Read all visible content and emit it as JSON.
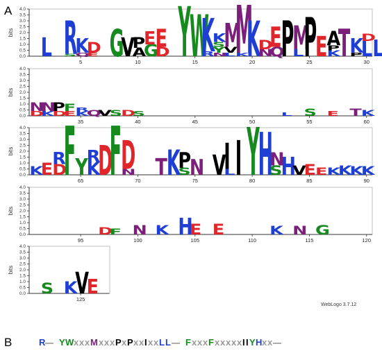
{
  "labels": {
    "panel_a": "A",
    "panel_b": "B",
    "credit": "WebLogo 3.7.12"
  },
  "colors": {
    "K": "#1f3fd4",
    "R": "#1f3fd4",
    "H": "#1f3fd4",
    "D": "#e0262b",
    "E": "#e0262b",
    "P": "#000000",
    "A": "#000000",
    "V": "#000000",
    "L": "#1f3fd4",
    "I": "#000000",
    "M": "#7b1f7b",
    "F": "#168a1e",
    "Y": "#168a1e",
    "W": "#168a1e",
    "N": "#7b1f7b",
    "Q": "#7b1f7b",
    "S": "#168a1e",
    "T": "#7b1f7b",
    "G": "#168a1e",
    "C": "#168a1e",
    "x": "#9a9a9a",
    "dash": "#777777"
  },
  "chart_data": {
    "type": "sequence-logo",
    "ylabel": "bits",
    "ylim": [
      0,
      4.0
    ],
    "yticks": [
      "0.0",
      "0.5",
      "1.0",
      "1.5",
      "2.0",
      "2.5",
      "3.0",
      "3.5",
      "4.0"
    ],
    "rows": [
      {
        "start": 1,
        "end": 30,
        "xticks": [
          "5",
          "10",
          "15",
          "20",
          "25",
          "30"
        ],
        "columns": [
          {
            "pos": 2,
            "stack": [
              [
                "L",
                1.6
              ]
            ]
          },
          {
            "pos": 4,
            "stack": [
              [
                "S",
                0.2
              ],
              [
                "R",
                2.8
              ]
            ]
          },
          {
            "pos": 5,
            "stack": [
              [
                "Q",
                0.3
              ],
              [
                "K",
                1.2
              ]
            ]
          },
          {
            "pos": 6,
            "stack": [
              [
                "E",
                0.3
              ],
              [
                "D",
                0.9
              ]
            ]
          },
          {
            "pos": 8,
            "stack": [
              [
                "G",
                2.3
              ]
            ]
          },
          {
            "pos": 9,
            "stack": [
              [
                "V",
                1.6
              ]
            ]
          },
          {
            "pos": 10,
            "stack": [
              [
                "A",
                0.7
              ],
              [
                "P",
                0.9
              ]
            ]
          },
          {
            "pos": 11,
            "stack": [
              [
                "G",
                1.0
              ],
              [
                "E",
                1.1
              ]
            ]
          },
          {
            "pos": 12,
            "stack": [
              [
                "D",
                0.8
              ],
              [
                "E",
                1.5
              ]
            ]
          },
          {
            "pos": 14,
            "stack": [
              [
                "Y",
                4.2
              ]
            ]
          },
          {
            "pos": 15,
            "stack": [
              [
                "W",
                3.5
              ]
            ]
          },
          {
            "pos": 16,
            "stack": [
              [
                "R",
                0.4
              ],
              [
                "K",
                2.8
              ]
            ]
          },
          {
            "pos": 17,
            "stack": [
              [
                "N",
                0.3
              ],
              [
                "Y",
                0.5
              ],
              [
                "S",
                0.4
              ],
              [
                "K",
                0.7
              ]
            ]
          },
          {
            "pos": 18,
            "stack": [
              [
                "L",
                0.3
              ],
              [
                "V",
                0.5
              ],
              [
                "M",
                2.0
              ]
            ]
          },
          {
            "pos": 19,
            "stack": [
              [
                "K",
                0.3
              ],
              [
                "M",
                4.0
              ]
            ]
          },
          {
            "pos": 20,
            "stack": [
              [
                "K",
                3.0
              ]
            ]
          },
          {
            "pos": 21,
            "stack": [
              [
                "N",
                0.6
              ],
              [
                "D",
                0.8
              ]
            ]
          },
          {
            "pos": 22,
            "stack": [
              [
                "Q",
                0.8
              ],
              [
                "E",
                1.7
              ]
            ]
          },
          {
            "pos": 23,
            "stack": [
              [
                "P",
                3.0
              ]
            ]
          },
          {
            "pos": 24,
            "stack": [
              [
                "L",
                0.6
              ],
              [
                "M",
                2.0
              ]
            ]
          },
          {
            "pos": 25,
            "stack": [
              [
                "P",
                3.3
              ]
            ]
          },
          {
            "pos": 26,
            "stack": [
              [
                "E",
                1.7
              ]
            ]
          },
          {
            "pos": 27,
            "stack": [
              [
                "K",
                0.5
              ],
              [
                "P",
                0.4
              ],
              [
                "A",
                1.2
              ]
            ]
          },
          {
            "pos": 28,
            "stack": [
              [
                "T",
                2.3
              ]
            ]
          },
          {
            "pos": 29,
            "stack": [
              [
                "P",
                0.3
              ],
              [
                "K",
                1.2
              ]
            ]
          },
          {
            "pos": 30,
            "stack": [
              [
                "L",
                1.3
              ],
              [
                "D",
                0.6
              ]
            ]
          },
          {
            "pos": 31,
            "stack": [
              [
                "L",
                1.4
              ]
            ]
          }
        ]
      },
      {
        "start": 31,
        "end": 60,
        "xticks": [
          "35",
          "40",
          "45",
          "50",
          "55",
          "60"
        ],
        "columns": [
          {
            "pos": 31,
            "stack": [
              [
                "D",
                0.4
              ],
              [
                "N",
                0.7
              ]
            ]
          },
          {
            "pos": 32,
            "stack": [
              [
                "K",
                0.4
              ],
              [
                "N",
                0.7
              ]
            ]
          },
          {
            "pos": 33,
            "stack": [
              [
                "D",
                0.4
              ],
              [
                "P",
                0.7
              ]
            ]
          },
          {
            "pos": 34,
            "stack": [
              [
                "E",
                0.4
              ],
              [
                "F",
                0.6
              ]
            ]
          },
          {
            "pos": 35,
            "stack": [
              [
                "K",
                0.4
              ],
              [
                "R",
                0.3
              ]
            ]
          },
          {
            "pos": 36,
            "stack": [
              [
                "Q",
                0.5
              ]
            ]
          },
          {
            "pos": 37,
            "stack": [
              [
                "V",
                0.5
              ]
            ]
          },
          {
            "pos": 38,
            "stack": [
              [
                "S",
                0.5
              ]
            ]
          },
          {
            "pos": 39,
            "stack": [
              [
                "D",
                0.5
              ]
            ]
          },
          {
            "pos": 40,
            "stack": [
              [
                "S",
                0.4
              ]
            ]
          },
          {
            "pos": 53,
            "stack": [
              [
                "L",
                0.3
              ]
            ]
          },
          {
            "pos": 55,
            "stack": [
              [
                "S",
                0.6
              ]
            ]
          },
          {
            "pos": 57,
            "stack": [
              [
                "E",
                0.4
              ]
            ]
          },
          {
            "pos": 59,
            "stack": [
              [
                "T",
                0.6
              ]
            ]
          },
          {
            "pos": 60,
            "stack": [
              [
                "K",
                0.5
              ]
            ]
          }
        ]
      },
      {
        "start": 61,
        "end": 90,
        "xticks": [
          "65",
          "70",
          "75",
          "80",
          "85",
          "90"
        ],
        "columns": [
          {
            "pos": 61,
            "stack": [
              [
                "K",
                0.7
              ]
            ]
          },
          {
            "pos": 62,
            "stack": [
              [
                "E",
                1.0
              ]
            ]
          },
          {
            "pos": 63,
            "stack": [
              [
                "D",
                0.9
              ],
              [
                "R",
                1.0
              ]
            ]
          },
          {
            "pos": 64,
            "stack": [
              [
                "F",
                4.1
              ]
            ]
          },
          {
            "pos": 65,
            "stack": [
              [
                "Y",
                1.4
              ]
            ]
          },
          {
            "pos": 66,
            "stack": [
              [
                "K",
                1.1
              ],
              [
                "R",
                1.0
              ]
            ]
          },
          {
            "pos": 67,
            "stack": [
              [
                "D",
                2.5
              ]
            ]
          },
          {
            "pos": 68,
            "stack": [
              [
                "F",
                4.1
              ]
            ]
          },
          {
            "pos": 69,
            "stack": [
              [
                "N",
                0.5
              ],
              [
                "D",
                2.4
              ]
            ]
          },
          {
            "pos": 72,
            "stack": [
              [
                "T",
                1.4
              ]
            ]
          },
          {
            "pos": 73,
            "stack": [
              [
                "K",
                2.1
              ]
            ]
          },
          {
            "pos": 74,
            "stack": [
              [
                "S",
                0.6
              ],
              [
                "P",
                1.3
              ]
            ]
          },
          {
            "pos": 75,
            "stack": [
              [
                "N",
                1.3
              ]
            ]
          },
          {
            "pos": 77,
            "stack": [
              [
                "V",
                1.7
              ]
            ]
          },
          {
            "pos": 78,
            "stack": [
              [
                "L",
                0.5
              ],
              [
                "I",
                2.2
              ]
            ]
          },
          {
            "pos": 79,
            "stack": [
              [
                "I",
                2.9
              ]
            ]
          },
          {
            "pos": 80,
            "stack": [
              [
                "Y",
                4.0
              ]
            ]
          },
          {
            "pos": 81,
            "stack": [
              [
                "H",
                3.6
              ]
            ]
          },
          {
            "pos": 82,
            "stack": [
              [
                "S",
                0.8
              ],
              [
                "N",
                1.1
              ]
            ]
          },
          {
            "pos": 83,
            "stack": [
              [
                "H",
                1.5
              ]
            ]
          },
          {
            "pos": 84,
            "stack": [
              [
                "V",
                0.8
              ]
            ]
          },
          {
            "pos": 85,
            "stack": [
              [
                "E",
                0.9
              ]
            ]
          },
          {
            "pos": 86,
            "stack": [
              [
                "E",
                0.6
              ]
            ]
          },
          {
            "pos": 87,
            "stack": [
              [
                "K",
                0.6
              ]
            ]
          },
          {
            "pos": 88,
            "stack": [
              [
                "K",
                0.8
              ]
            ]
          },
          {
            "pos": 89,
            "stack": [
              [
                "K",
                0.7
              ]
            ]
          },
          {
            "pos": 90,
            "stack": [
              [
                "K",
                0.7
              ]
            ]
          }
        ]
      },
      {
        "start": 91,
        "end": 120,
        "xticks": [
          "95",
          "100",
          "105",
          "110",
          "115",
          "120"
        ],
        "columns": [
          {
            "pos": 97,
            "stack": [
              [
                "D",
                0.6
              ]
            ]
          },
          {
            "pos": 98,
            "stack": [
              [
                "F",
                0.5
              ]
            ]
          },
          {
            "pos": 100,
            "stack": [
              [
                "N",
                0.8
              ]
            ]
          },
          {
            "pos": 102,
            "stack": [
              [
                "K",
                0.8
              ]
            ]
          },
          {
            "pos": 104,
            "stack": [
              [
                "H",
                1.4
              ]
            ]
          },
          {
            "pos": 105,
            "stack": [
              [
                "E",
                0.9
              ]
            ]
          },
          {
            "pos": 107,
            "stack": [
              [
                "E",
                0.9
              ]
            ]
          },
          {
            "pos": 112,
            "stack": [
              [
                "K",
                0.7
              ]
            ]
          },
          {
            "pos": 114,
            "stack": [
              [
                "N",
                0.7
              ]
            ]
          },
          {
            "pos": 116,
            "stack": [
              [
                "G",
                0.8
              ]
            ]
          }
        ]
      },
      {
        "start": 121,
        "end": 127,
        "xticks": [
          "125"
        ],
        "columns": [
          {
            "pos": 122,
            "stack": [
              [
                "S",
                0.9
              ]
            ]
          },
          {
            "pos": 124,
            "stack": [
              [
                "K",
                1.0
              ]
            ]
          },
          {
            "pos": 125,
            "stack": [
              [
                "V",
                1.8
              ]
            ]
          },
          {
            "pos": 126,
            "stack": [
              [
                "E",
                1.2
              ]
            ]
          }
        ]
      }
    ]
  },
  "motif_b": [
    {
      "t": "R"
    },
    {
      "t": "—"
    },
    {
      "t": "YW"
    },
    {
      "t": "xxx"
    },
    {
      "t": "M"
    },
    {
      "t": "xxx"
    },
    {
      "t": "P"
    },
    {
      "t": "x"
    },
    {
      "t": "P"
    },
    {
      "t": "xx"
    },
    {
      "t": "I"
    },
    {
      "t": "xx"
    },
    {
      "t": "LL"
    },
    {
      "t": "—"
    },
    {
      "t": "F"
    },
    {
      "t": "xxx"
    },
    {
      "t": "F"
    },
    {
      "t": "xxxxx"
    },
    {
      "t": "IIYH"
    },
    {
      "t": "xx"
    },
    {
      "t": "—"
    }
  ]
}
